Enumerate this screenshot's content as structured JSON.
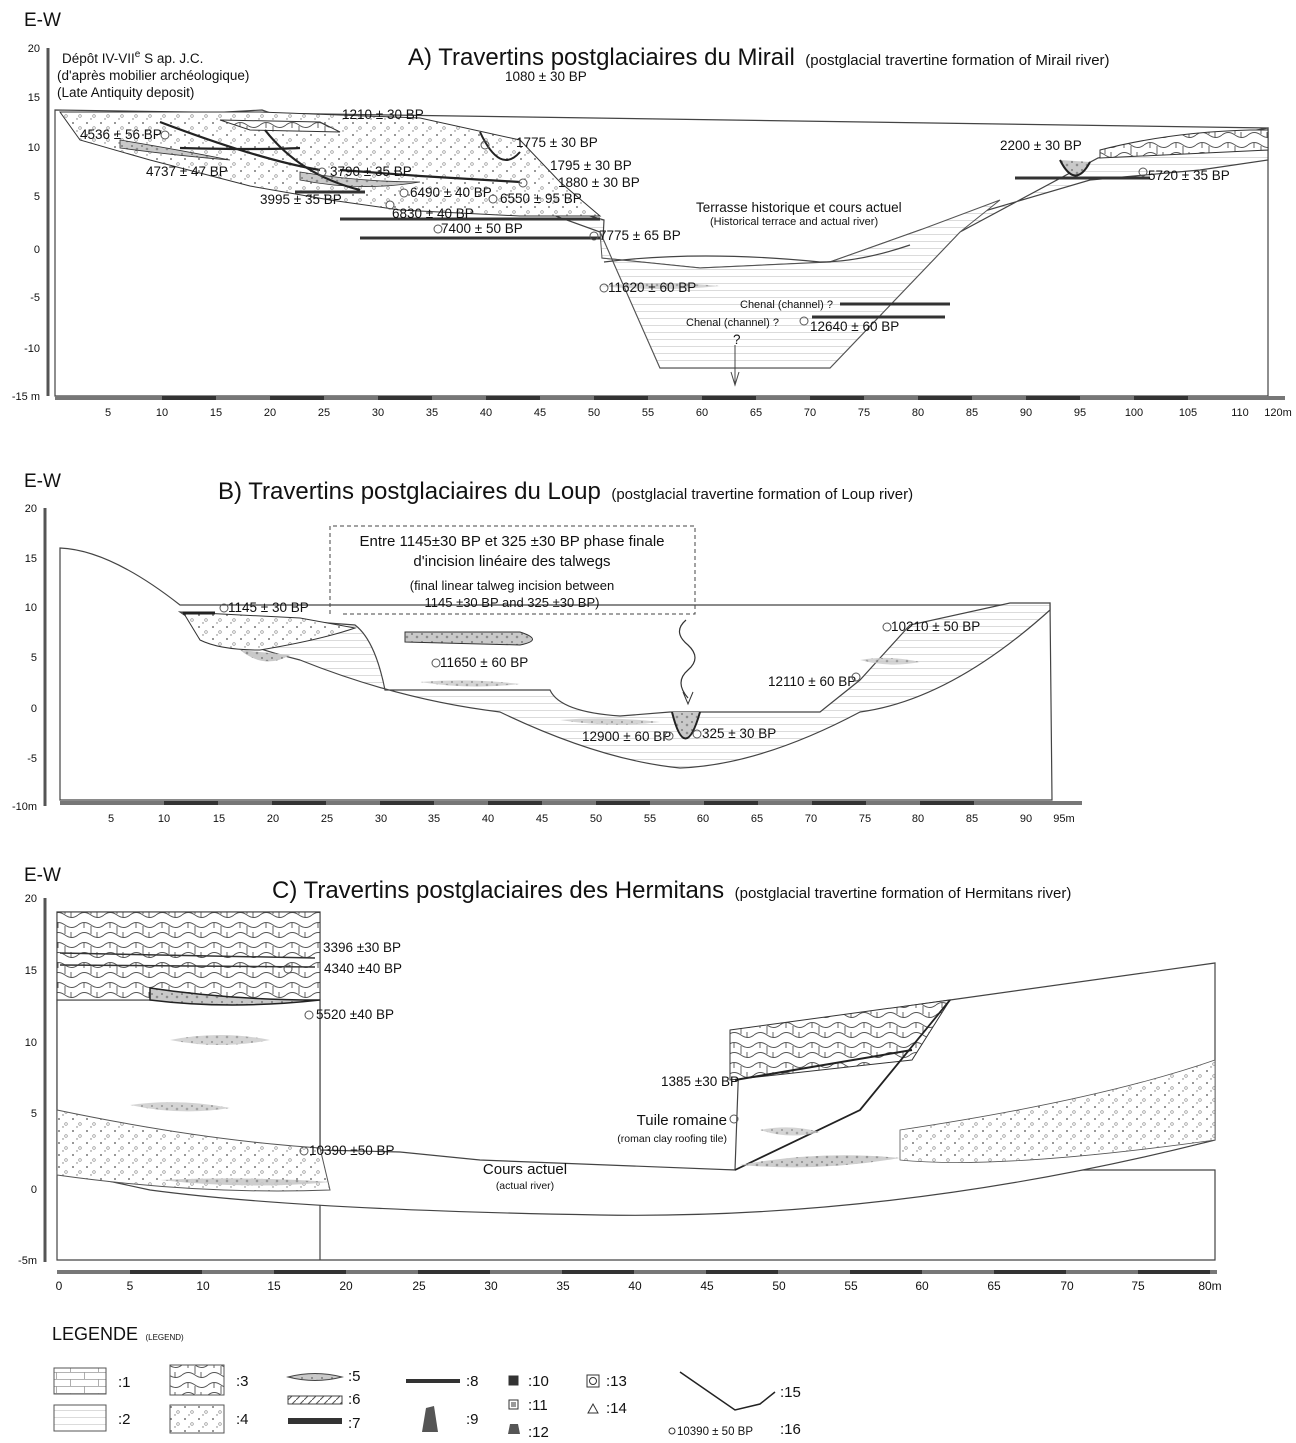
{
  "panels": [
    {
      "axis_code": "E-W",
      "title_main": "A) Travertins postglaciaires du Mirail",
      "title_sub": "(postglacial travertine formation of Mirail river)",
      "y_ticks": [
        "20",
        "15",
        "10",
        "5",
        "0",
        "-5",
        "-10",
        "-15 m"
      ],
      "x_ticks": [
        "5",
        "10",
        "15",
        "20",
        "25",
        "30",
        "35",
        "40",
        "45",
        "50",
        "55",
        "60",
        "65",
        "70",
        "75",
        "80",
        "85",
        "90",
        "95",
        "100",
        "105",
        "110",
        "120m"
      ],
      "notes": {
        "deposit_l1": "Dépôt IV-VII",
        "deposit_sup": "e",
        "deposit_l1b": " S ap. J.C.",
        "deposit_l2": "(d'après mobilier archéologique)",
        "deposit_l3": "(Late Antiquity deposit)",
        "terrace": "Terrasse historique et cours actuel",
        "terrace_sub": "(Historical terrace and actual river)",
        "channel_1": "Chenal (channel) ?",
        "channel_2": "Chenal (channel) ?",
        "question": "?"
      },
      "dates": [
        "4536 ± 56 BP",
        "4737 ± 47 BP",
        "1210 ± 30 BP",
        "1080 ± 30 BP",
        "1775 ± 30 BP",
        "1795 ± 30 BP",
        "1880 ± 30 BP",
        "3790 ± 35 BP",
        "3995 ± 35 BP",
        "6490 ± 40 BP",
        "6550 ± 95 BP",
        "6830 ± 40 BP",
        "7400 ± 50 BP",
        "7775 ± 65 BP",
        "11620 ± 60 BP",
        "12640 ± 60 BP",
        "2200 ± 30 BP",
        "5720 ± 35 BP"
      ]
    },
    {
      "axis_code": "E-W",
      "title_main": "B) Travertins postglaciaires du Loup",
      "title_sub": "(postglacial travertine formation of Loup river)",
      "y_ticks": [
        "20",
        "15",
        "10",
        "5",
        "0",
        "-5",
        "-10m"
      ],
      "x_ticks": [
        "5",
        "10",
        "15",
        "20",
        "25",
        "30",
        "35",
        "40",
        "45",
        "50",
        "55",
        "60",
        "65",
        "70",
        "75",
        "80",
        "85",
        "90",
        "95m"
      ],
      "notes": {
        "box_l1": "Entre 1145±30 BP et 325 ±30 BP phase finale",
        "box_l2": "d'incision linéaire des talwegs",
        "box_l3": "(final linear talweg incision between",
        "box_l4": "1145 ±30 BP and 325 ±30 BP)"
      },
      "dates": [
        "1145 ± 30 BP",
        "11650 ± 60 BP",
        "12900 ± 60 BP",
        "325 ± 30 BP",
        "10210 ± 50 BP",
        "12110 ± 60 BP"
      ]
    },
    {
      "axis_code": "E-W",
      "title_main": "C) Travertins postglaciaires des Hermitans",
      "title_sub": "(postglacial travertine formation of Hermitans river)",
      "y_ticks": [
        "20",
        "15",
        "10",
        "5",
        "0",
        "-5m"
      ],
      "x_ticks": [
        "0",
        "5",
        "10",
        "15",
        "20",
        "25",
        "30",
        "35",
        "40",
        "45",
        "50",
        "55",
        "60",
        "65",
        "70",
        "75",
        "80m"
      ],
      "notes": {
        "tile": "Tuile romaine",
        "tile_sub": "(roman clay roofing tile)",
        "river": "Cours actuel",
        "river_sub": "(actual river)"
      },
      "dates": [
        "3396 ±30 BP",
        "4340 ±40 BP",
        "5520 ±40 BP",
        "1385 ±30 BP",
        "10390 ±50 BP"
      ]
    }
  ],
  "legend": {
    "title": "LEGENDE",
    "title_sub": "(LEGEND)",
    "items": [
      ":1",
      ":2",
      ":3",
      ":4",
      ":5",
      ":6",
      ":7",
      ":8",
      ":9",
      ":10",
      ":11",
      ":12",
      ":13",
      ":14",
      ":15",
      ":16"
    ],
    "sample_date": "10390 ± 50 BP"
  }
}
